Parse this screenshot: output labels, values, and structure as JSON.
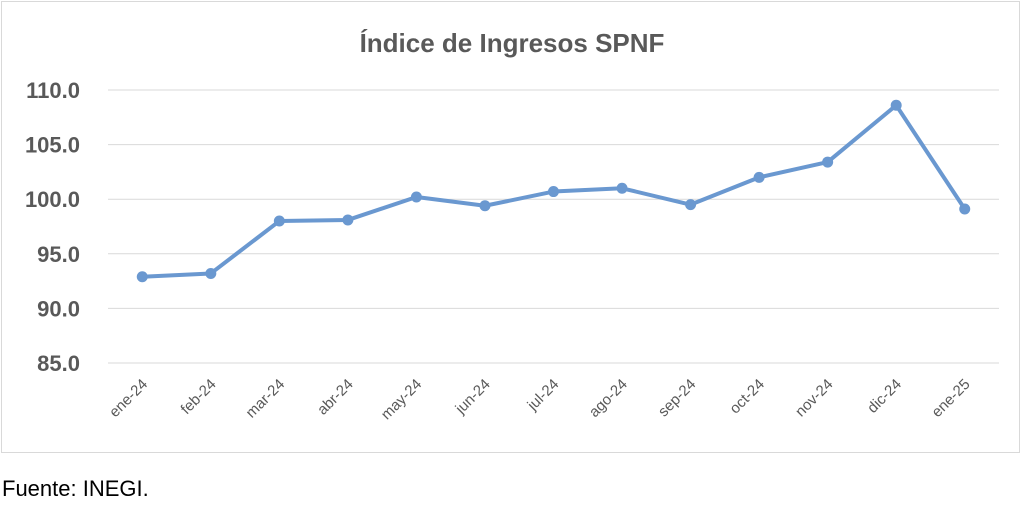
{
  "chart_data": {
    "type": "line",
    "title": "Índice de Ingresos SPNF",
    "xlabel": "",
    "ylabel": "",
    "categories": [
      "ene-24",
      "feb-24",
      "mar-24",
      "abr-24",
      "may-24",
      "jun-24",
      "jul-24",
      "ago-24",
      "sep-24",
      "oct-24",
      "nov-24",
      "dic-24",
      "ene-25"
    ],
    "series": [
      {
        "values": [
          92.9,
          93.2,
          98.0,
          98.1,
          100.2,
          99.4,
          100.7,
          101.0,
          99.5,
          102.0,
          103.4,
          108.6,
          99.1
        ]
      }
    ],
    "ylim": [
      85.0,
      110.0
    ],
    "yticks": [
      "85.0",
      "90.0",
      "95.0",
      "100.0",
      "105.0",
      "110.0"
    ],
    "grid": true,
    "legend": "none",
    "line_color": "#6a98d0"
  },
  "source_note": "Fuente: INEGI."
}
